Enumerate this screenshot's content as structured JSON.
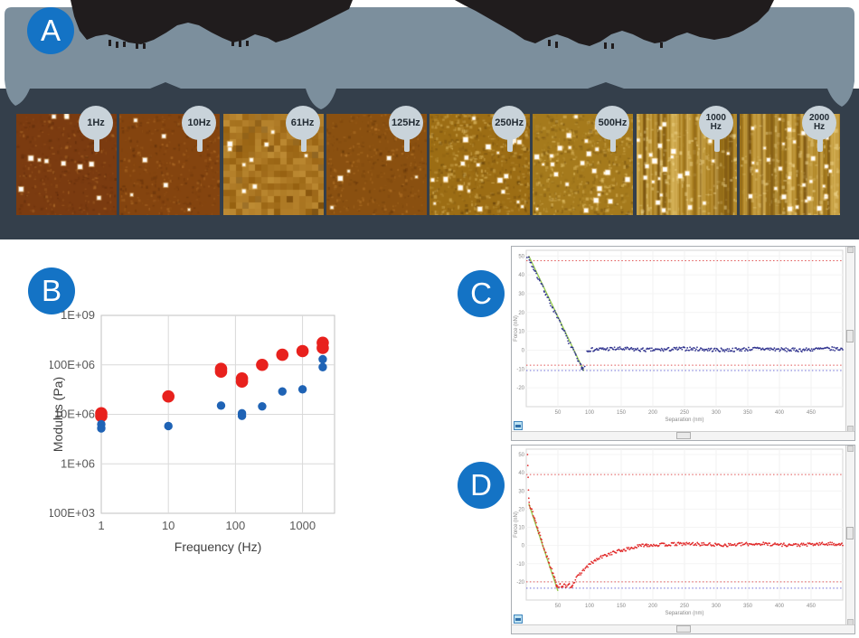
{
  "figure": {
    "panel_labels": {
      "a": "A",
      "b": "B",
      "c": "C",
      "d": "D"
    },
    "accent_blue": "#1473c5"
  },
  "banner": {
    "band_color": "#7c8f9d",
    "dark_band_color": "#343f4b",
    "blob_color": "#201c1d",
    "badge_bg": "#c9d3da",
    "badge_text_color": "#222b33"
  },
  "afm_strip": {
    "images": [
      {
        "label_lines": [
          "1Hz"
        ],
        "base": "#7b3b10",
        "light": "#a3581a",
        "specks": 13,
        "style": "dots"
      },
      {
        "label_lines": [
          "10Hz"
        ],
        "base": "#84440f",
        "light": "#ad6418",
        "specks": 7,
        "style": "fine"
      },
      {
        "label_lines": [
          "61Hz"
        ],
        "base": "#966010",
        "light": "#c8901f",
        "specks": 9,
        "style": "mosaic"
      },
      {
        "label_lines": [
          "125Hz"
        ],
        "base": "#8a5010",
        "light": "#aa6c18",
        "specks": 5,
        "style": "fine"
      },
      {
        "label_lines": [
          "250Hz"
        ],
        "base": "#9c6d14",
        "light": "#cfa63c",
        "specks": 26,
        "style": "grain"
      },
      {
        "label_lines": [
          "500Hz"
        ],
        "base": "#a57a1c",
        "light": "#d6ae44",
        "specks": 30,
        "style": "grain"
      },
      {
        "label_lines": [
          "1000",
          "Hz"
        ],
        "base": "#a87d1e",
        "light": "#d8b14a",
        "specks": 28,
        "style": "streaks"
      },
      {
        "label_lines": [
          "2000",
          "Hz"
        ],
        "base": "#aa7f20",
        "light": "#dab44e",
        "specks": 30,
        "style": "streaks"
      }
    ]
  },
  "chart_data": [
    {
      "id": "modulus_vs_frequency",
      "panel": "B",
      "type": "scatter",
      "xlabel": "Frequency (Hz)",
      "ylabel": "Modulus (Pa)",
      "x_scale": "log",
      "y_scale": "log",
      "xlim": [
        1,
        3000
      ],
      "ylim": [
        100000,
        1000000000
      ],
      "x_ticks": [
        1,
        10,
        100,
        1000
      ],
      "y_ticks": [
        {
          "value": 1000000000,
          "label": "1E+09"
        },
        {
          "value": 100000000,
          "label": "100E+06"
        },
        {
          "value": 10000000,
          "label": "10E+06"
        },
        {
          "value": 1000000,
          "label": "1E+06"
        },
        {
          "value": 100000,
          "label": "100E+03"
        }
      ],
      "grid": true,
      "legend": false,
      "series": [
        {
          "name": "red-modulus",
          "color": "#e8211d",
          "marker": "circle",
          "marker_px": 6.8,
          "points": [
            [
              1,
              10500000
            ],
            [
              1,
              9200000
            ],
            [
              10,
              23000000
            ],
            [
              61,
              83000000
            ],
            [
              61,
              73000000
            ],
            [
              125,
              53000000
            ],
            [
              125,
              46000000
            ],
            [
              250,
              100000000
            ],
            [
              500,
              160000000
            ],
            [
              1000,
              190000000
            ],
            [
              2000,
              280000000
            ],
            [
              2000,
              220000000
            ]
          ]
        },
        {
          "name": "blue-modulus",
          "color": "#1f63b5",
          "marker": "circle",
          "marker_px": 4.7,
          "points": [
            [
              1,
              6300000
            ],
            [
              1,
              5200000
            ],
            [
              10,
              5800000
            ],
            [
              61,
              15000000
            ],
            [
              125,
              10500000
            ],
            [
              125,
              9300000
            ],
            [
              250,
              14500000
            ],
            [
              500,
              29000000
            ],
            [
              1000,
              32000000
            ],
            [
              2000,
              130000000
            ],
            [
              2000,
              90000000
            ]
          ]
        }
      ]
    },
    {
      "id": "force_curve_blue",
      "panel": "C",
      "type": "line",
      "xlabel": "Separation (nm)",
      "ylabel": "Force (nN)",
      "xlim": [
        0,
        500
      ],
      "ylim": [
        -30,
        53
      ],
      "x_ticks": [
        50,
        100,
        150,
        200,
        250,
        300,
        350,
        400,
        450
      ],
      "y_ticks": [
        -20,
        -10,
        0,
        10,
        20,
        30,
        40,
        50
      ],
      "point_color": "#2b2e8c",
      "fit_line": {
        "color": "#8cc63e",
        "from": [
          4,
          50
        ],
        "to": [
          91,
          -11
        ]
      },
      "contact_segment": {
        "from": [
          2,
          50
        ],
        "to": [
          89,
          -10.5
        ],
        "noise": 0.9
      },
      "baseline": {
        "x_from": 96,
        "x_to": 500,
        "level": 0.4,
        "noise": 1.0
      },
      "hlines": [
        {
          "y": 47.5,
          "color": "#e05555",
          "style": "dotted"
        },
        {
          "y": -8.0,
          "color": "#e05555",
          "style": "dotted"
        },
        {
          "y": -10.8,
          "color": "#6b6bd6",
          "style": "dotted"
        }
      ]
    },
    {
      "id": "force_curve_red",
      "panel": "D",
      "type": "line",
      "xlabel": "Separation (nm)",
      "ylabel": "Force (nN)",
      "xlim": [
        0,
        500
      ],
      "ylim": [
        -30,
        53
      ],
      "x_ticks": [
        50,
        100,
        150,
        200,
        250,
        300,
        350,
        400,
        450
      ],
      "y_ticks": [
        -20,
        -10,
        0,
        10,
        20,
        30,
        40,
        50
      ],
      "point_color": "#e02424",
      "fit_line": {
        "color": "#8cc63e",
        "from": [
          4,
          23
        ],
        "to": [
          50,
          -25
        ]
      },
      "descent": {
        "sparse_points": [
          [
            2,
            50
          ],
          [
            2.5,
            44
          ],
          [
            3,
            37.5
          ],
          [
            3.5,
            30.5
          ],
          [
            4,
            26
          ]
        ],
        "from": [
          4.5,
          24
        ],
        "min": -22,
        "min_at": [
          48,
          72
        ],
        "noise": 1.0
      },
      "recovery": {
        "x_from": 72,
        "x_to": 190,
        "tau": 38,
        "overshoot": 1.5
      },
      "baseline": {
        "x_from": 190,
        "x_to": 500,
        "level": 0.6,
        "noise": 0.9
      },
      "hlines": [
        {
          "y": 39,
          "color": "#e05555",
          "style": "dotted"
        },
        {
          "y": -20,
          "color": "#e05555",
          "style": "dotted"
        },
        {
          "y": -23.5,
          "color": "#6b6bd6",
          "style": "dotted"
        }
      ]
    }
  ]
}
